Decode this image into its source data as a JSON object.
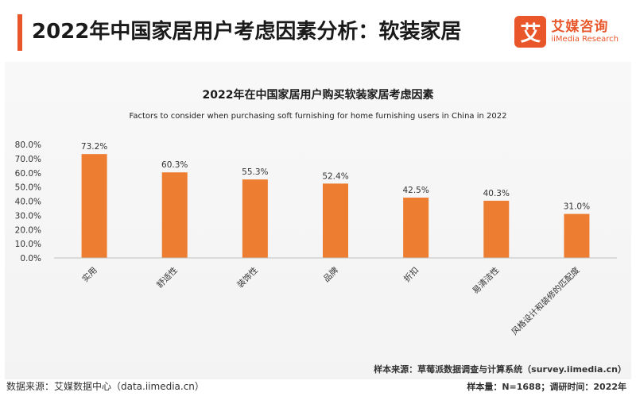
{
  "header": {
    "title": "2022年中国家居用户考虑因素分析：软装家居",
    "logo_mark": "艾",
    "logo_cn": "艾媒咨询",
    "logo_en": "iiMedia Research",
    "accent_color": "#e8562a"
  },
  "chart_data": {
    "type": "bar",
    "title": "2022年在中国家居用户购买软装家居考虑因素",
    "subtitle": "Factors to consider when purchasing soft furnishing for home furnishing users in China in 2022",
    "categories": [
      "实用",
      "舒适性",
      "装饰性",
      "品牌",
      "折扣",
      "易清洁性",
      "风格设计和装修的匹配度"
    ],
    "values": [
      73.2,
      60.3,
      55.3,
      52.4,
      42.5,
      40.3,
      31.0
    ],
    "data_labels": [
      "73.2%",
      "60.3%",
      "55.3%",
      "52.4%",
      "42.5%",
      "40.3%",
      "31.0%"
    ],
    "ylim": [
      0,
      80
    ],
    "yticks": [
      "0.0%",
      "10.0%",
      "20.0%",
      "30.0%",
      "40.0%",
      "50.0%",
      "60.0%",
      "70.0%",
      "80.0%"
    ],
    "bar_color": "#ed7d31",
    "grid": false
  },
  "footer": {
    "source": "数据来源：艾媒数据中心（data.iimedia.cn）",
    "sample_source": "样本来源：草莓派数据调查与计算系统（survey.iimedia.cn）",
    "sample_info": "样本量：N=1688；调研时间：2022年"
  }
}
